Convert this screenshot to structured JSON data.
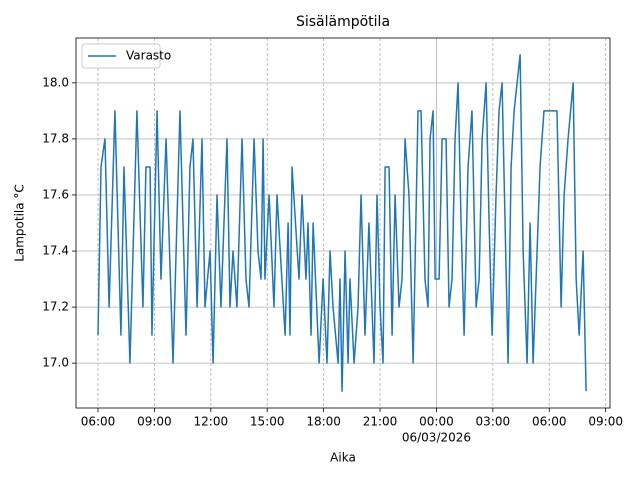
{
  "chart_data": {
    "type": "line",
    "title": "Sisälämpötila",
    "xlabel": "Aika",
    "ylabel": "Lampotila °C",
    "x": [
      6.0,
      6.16,
      6.37,
      6.59,
      6.9,
      7.22,
      7.38,
      7.7,
      8.07,
      8.39,
      8.55,
      8.77,
      8.87,
      9.14,
      9.35,
      9.62,
      9.99,
      10.36,
      10.68,
      10.89,
      11.05,
      11.27,
      11.53,
      11.69,
      11.96,
      12.12,
      12.33,
      12.54,
      12.86,
      13.02,
      13.18,
      13.39,
      13.66,
      13.87,
      14.03,
      14.3,
      14.51,
      14.67,
      14.78,
      14.88,
      15.1,
      15.36,
      15.52,
      15.95,
      16.11,
      16.21,
      16.32,
      16.69,
      16.85,
      17.06,
      17.17,
      17.33,
      17.44,
      17.76,
      17.97,
      18.18,
      18.34,
      18.5,
      18.77,
      18.87,
      18.98,
      19.14,
      19.3,
      19.4,
      19.62,
      19.83,
      19.99,
      20.2,
      20.41,
      20.68,
      20.84,
      21.0,
      21.16,
      21.27,
      21.48,
      21.64,
      21.8,
      22.01,
      22.17,
      22.33,
      22.54,
      22.76,
      23.02,
      23.18,
      23.39,
      23.55,
      23.66,
      23.82,
      23.93,
      24.14,
      24.3,
      24.51,
      24.67,
      24.83,
      24.99,
      25.15,
      25.31,
      25.47,
      25.68,
      25.89,
      26.11,
      26.27,
      26.43,
      26.64,
      26.8,
      26.96,
      27.17,
      27.33,
      27.49,
      27.65,
      27.81,
      27.97,
      28.13,
      28.29,
      28.45,
      28.61,
      28.82,
      28.98,
      29.14,
      29.3,
      29.51,
      29.72,
      30.41,
      30.63,
      30.79,
      31.0,
      31.27,
      31.43,
      31.59,
      31.8,
      31.96
    ],
    "series": [
      {
        "name": "Varasto",
        "color": "#1f77b4",
        "values": [
          17.1,
          17.7,
          17.8,
          17.2,
          17.9,
          17.1,
          17.7,
          17.0,
          17.9,
          17.2,
          17.7,
          17.7,
          17.1,
          17.9,
          17.3,
          17.8,
          17.0,
          17.9,
          17.1,
          17.7,
          17.8,
          17.2,
          17.8,
          17.2,
          17.4,
          17.0,
          17.6,
          17.2,
          17.8,
          17.2,
          17.4,
          17.2,
          17.8,
          17.3,
          17.2,
          17.8,
          17.4,
          17.3,
          17.8,
          17.3,
          17.6,
          17.2,
          17.6,
          17.1,
          17.5,
          17.1,
          17.7,
          17.3,
          17.6,
          17.3,
          17.5,
          17.1,
          17.5,
          17.0,
          17.3,
          17.0,
          17.4,
          17.2,
          17.0,
          17.3,
          16.9,
          17.4,
          17.0,
          17.3,
          17.0,
          17.2,
          17.6,
          17.1,
          17.5,
          17.0,
          17.6,
          17.2,
          17.0,
          17.7,
          17.7,
          17.1,
          17.6,
          17.2,
          17.3,
          17.8,
          17.6,
          17.0,
          17.9,
          17.9,
          17.3,
          17.2,
          17.8,
          17.9,
          17.3,
          17.3,
          17.8,
          17.8,
          17.2,
          17.3,
          17.8,
          18.0,
          17.5,
          17.1,
          17.7,
          17.9,
          17.2,
          17.3,
          17.8,
          18.0,
          17.5,
          17.1,
          17.6,
          17.9,
          18.0,
          17.5,
          17.0,
          17.7,
          17.9,
          18.0,
          18.1,
          17.4,
          17.0,
          17.5,
          17.0,
          17.3,
          17.7,
          17.9,
          17.9,
          17.2,
          17.6,
          17.8,
          18.0,
          17.3,
          17.1,
          17.4,
          16.9
        ]
      }
    ],
    "xlim": [
      4.83,
      33.23
    ],
    "ylim": [
      16.84,
      18.16
    ],
    "xticks": [
      {
        "value": 6,
        "label": "06:00"
      },
      {
        "value": 9,
        "label": "09:00"
      },
      {
        "value": 12,
        "label": "12:00"
      },
      {
        "value": 15,
        "label": "15:00"
      },
      {
        "value": 18,
        "label": "18:00"
      },
      {
        "value": 21,
        "label": "21:00"
      },
      {
        "value": 24,
        "label": "00:00",
        "sublabel": "06/03/2026"
      },
      {
        "value": 27,
        "label": "03:00"
      },
      {
        "value": 30,
        "label": "06:00"
      },
      {
        "value": 33,
        "label": "09:00"
      }
    ],
    "yticks": [
      {
        "value": 17,
        "label": "17.0"
      },
      17.2,
      17.4,
      17.6,
      17.8,
      {
        "value": 18,
        "label": "18.0"
      }
    ],
    "grid": true,
    "legend": "upper left"
  }
}
